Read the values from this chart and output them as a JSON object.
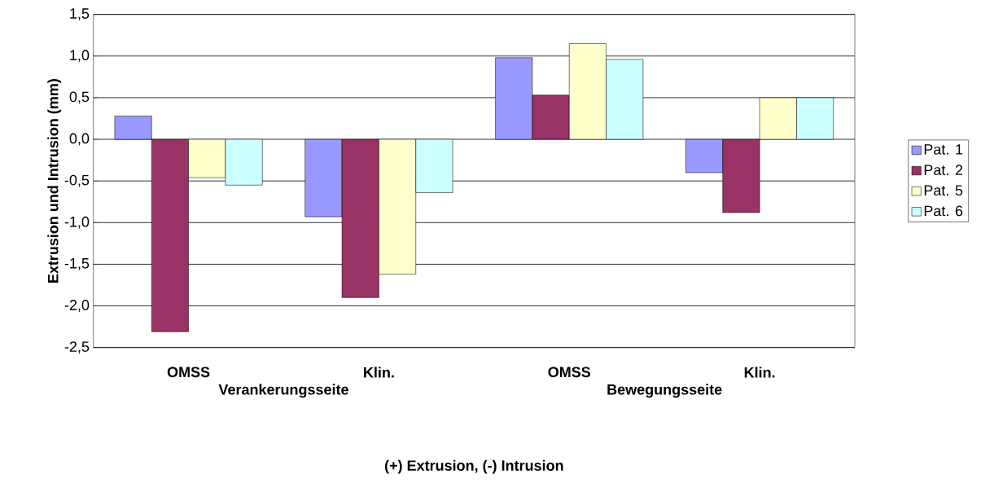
{
  "chart_data": {
    "type": "bar",
    "ylabel": "Extrusion und Intrusion (mm)",
    "categories": [
      "OMSS",
      "Klin.",
      "OMSS",
      "Klin."
    ],
    "annotations": [
      "Verankerungsseite",
      "Bewegungsseite",
      "(+) Extrusion, (-) Intrusion"
    ],
    "series": [
      {
        "name": "Pat. 1",
        "color": "#9999ff",
        "values": [
          0.28,
          -0.93,
          0.98,
          -0.4
        ]
      },
      {
        "name": "Pat. 2",
        "color": "#993366",
        "values": [
          -2.31,
          -1.9,
          0.53,
          -0.88
        ]
      },
      {
        "name": "Pat. 5",
        "color": "#ffffcc",
        "values": [
          -0.46,
          -1.62,
          1.15,
          0.5
        ]
      },
      {
        "name": "Pat. 6",
        "color": "#ccffff",
        "values": [
          -0.55,
          -0.64,
          0.96,
          0.5
        ]
      }
    ],
    "ylim": [
      -2.5,
      1.5
    ],
    "yticks": [
      {
        "value": -2.5,
        "label": "-2,5"
      },
      {
        "value": -2.0,
        "label": "-2,0"
      },
      {
        "value": -1.5,
        "label": "-1,5"
      },
      {
        "value": -1.0,
        "label": "-1,0"
      },
      {
        "value": -0.5,
        "label": "-0,5"
      },
      {
        "value": 0,
        "label": "0,0"
      },
      {
        "value": 0.5,
        "label": "0,5"
      },
      {
        "value": 1.0,
        "label": "1,0"
      },
      {
        "value": 1.5,
        "label": "1,5"
      }
    ],
    "grid": "y",
    "legend": "right"
  }
}
